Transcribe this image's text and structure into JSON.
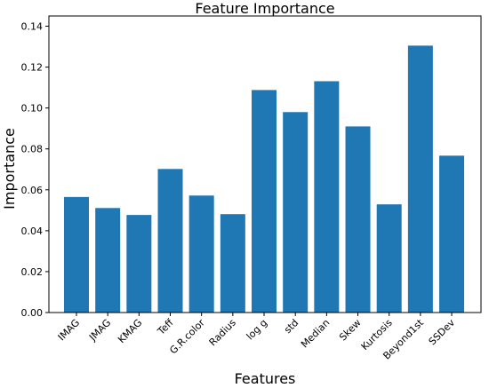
{
  "chart_data": {
    "type": "bar",
    "title": "Feature Importance",
    "x_label": "Features",
    "y_label": "Importance",
    "categories": [
      "IMAG",
      "JMAG",
      "KMAG",
      "Teff",
      "G.R.color",
      "Radius",
      "log g",
      "std",
      "Median",
      "Skew",
      "Kurtosis",
      "Beyond1st",
      "SSDev"
    ],
    "values": [
      0.0565,
      0.0511,
      0.0477,
      0.0702,
      0.0572,
      0.0481,
      0.1088,
      0.098,
      0.1131,
      0.091,
      0.0529,
      0.1305,
      0.0767
    ],
    "color": "#1f77b4",
    "ylim": [
      0,
      0.145
    ],
    "yticks": [
      {
        "value": 0,
        "label": "0.00"
      },
      {
        "value": 0.02,
        "label": "0.02"
      },
      {
        "value": 0.04,
        "label": "0.04"
      },
      {
        "value": 0.06,
        "label": "0.06"
      },
      {
        "value": 0.08,
        "label": "0.08"
      },
      {
        "value": 0.1,
        "label": "0.10"
      },
      {
        "value": 0.12,
        "label": "0.12"
      },
      {
        "value": 0.14,
        "label": "0.14"
      }
    ],
    "grid": false
  }
}
